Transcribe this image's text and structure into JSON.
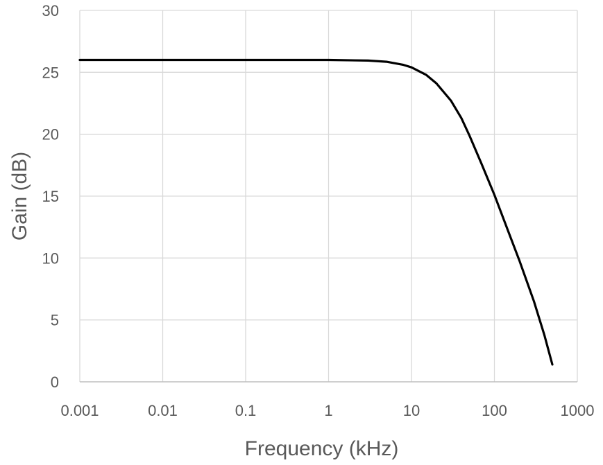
{
  "chart_data": {
    "type": "line",
    "title": "",
    "xlabel": "Frequency (kHz)",
    "ylabel": "Gain (dB)",
    "x_scale": "log",
    "xlim": [
      0.001,
      1000
    ],
    "ylim": [
      0,
      30
    ],
    "x_ticks": [
      0.001,
      0.01,
      0.1,
      1,
      10,
      100,
      1000
    ],
    "x_tick_labels": [
      "0.001",
      "0.01",
      "0.1",
      "1",
      "10",
      "100",
      "1000"
    ],
    "y_ticks": [
      0,
      5,
      10,
      15,
      20,
      25,
      30
    ],
    "y_tick_labels": [
      "0",
      "5",
      "10",
      "15",
      "20",
      "25",
      "30"
    ],
    "grid": true,
    "legend": "none",
    "series": [
      {
        "x": [
          0.001,
          0.01,
          0.1,
          1,
          3,
          5,
          8,
          10,
          15,
          20,
          30,
          40,
          50,
          70,
          100,
          150,
          200,
          300,
          400,
          500
        ],
        "y": [
          26.0,
          26.0,
          26.0,
          26.0,
          25.95,
          25.85,
          25.6,
          25.4,
          24.8,
          24.1,
          22.7,
          21.3,
          19.9,
          17.6,
          15.1,
          12.0,
          9.8,
          6.5,
          3.8,
          1.4
        ],
        "color": "#000000"
      }
    ],
    "colors": {
      "background": "#ffffff",
      "grid": "#d9d9d9",
      "axis": "#bfbfbf",
      "text": "#595959",
      "line": "#000000"
    }
  }
}
